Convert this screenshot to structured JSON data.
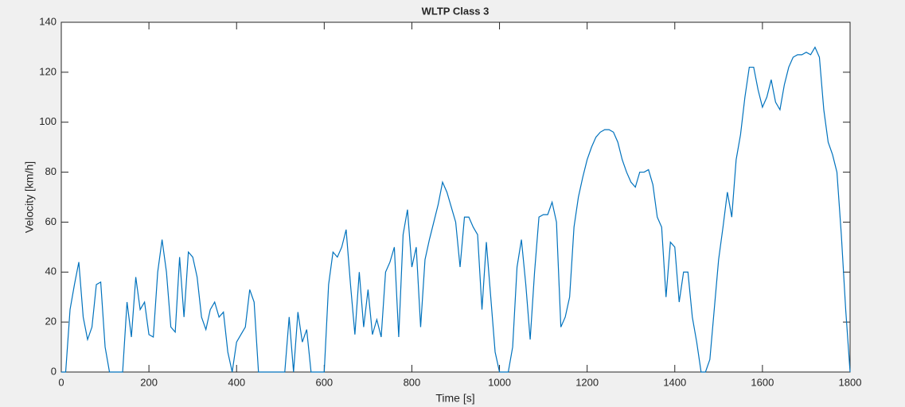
{
  "chart_data": {
    "type": "line",
    "title": "WLTP Class 3",
    "x_label": "Time [s]",
    "y_label": "Velocity [km/h]",
    "x": [
      0,
      10,
      20,
      30,
      40,
      50,
      60,
      70,
      80,
      90,
      100,
      110,
      120,
      130,
      140,
      150,
      160,
      170,
      180,
      190,
      200,
      210,
      220,
      230,
      240,
      250,
      260,
      270,
      280,
      290,
      300,
      310,
      320,
      330,
      340,
      350,
      360,
      370,
      380,
      390,
      400,
      410,
      420,
      430,
      440,
      450,
      460,
      470,
      480,
      490,
      500,
      510,
      520,
      530,
      540,
      550,
      560,
      570,
      580,
      590,
      600,
      610,
      620,
      630,
      640,
      650,
      660,
      670,
      680,
      690,
      700,
      710,
      720,
      730,
      740,
      750,
      760,
      770,
      780,
      790,
      800,
      810,
      820,
      830,
      840,
      850,
      860,
      870,
      880,
      890,
      900,
      910,
      920,
      930,
      940,
      950,
      960,
      970,
      980,
      990,
      1000,
      1010,
      1020,
      1030,
      1040,
      1050,
      1060,
      1070,
      1080,
      1090,
      1100,
      1110,
      1120,
      1130,
      1140,
      1150,
      1160,
      1170,
      1180,
      1190,
      1200,
      1210,
      1220,
      1230,
      1240,
      1250,
      1260,
      1270,
      1280,
      1290,
      1300,
      1310,
      1320,
      1330,
      1340,
      1350,
      1360,
      1370,
      1380,
      1390,
      1400,
      1410,
      1420,
      1430,
      1440,
      1450,
      1460,
      1470,
      1480,
      1490,
      1500,
      1510,
      1520,
      1530,
      1540,
      1550,
      1560,
      1570,
      1580,
      1590,
      1600,
      1610,
      1620,
      1630,
      1640,
      1650,
      1660,
      1670,
      1680,
      1690,
      1700,
      1710,
      1720,
      1730,
      1740,
      1750,
      1760,
      1770,
      1780,
      1790,
      1800
    ],
    "series": [
      {
        "name": "Velocity",
        "color": "#0072bd",
        "values": [
          0,
          0,
          25,
          35,
          44,
          22,
          13,
          18,
          35,
          36,
          10,
          0,
          0,
          0,
          0,
          28,
          14,
          38,
          25,
          28,
          15,
          14,
          40,
          53,
          40,
          18,
          16,
          46,
          22,
          48,
          46,
          38,
          22,
          17,
          25,
          28,
          22,
          24,
          8,
          0,
          12,
          15,
          18,
          33,
          28,
          0,
          0,
          0,
          0,
          0,
          0,
          0,
          22,
          0,
          24,
          12,
          17,
          0,
          0,
          0,
          0,
          35,
          48,
          46,
          50,
          57,
          35,
          15,
          40,
          18,
          33,
          15,
          21,
          14,
          40,
          44,
          50,
          14,
          55,
          65,
          42,
          50,
          18,
          45,
          53,
          60,
          67,
          76,
          72,
          66,
          60,
          42,
          62,
          62,
          58,
          55,
          25,
          52,
          30,
          8,
          0,
          0,
          0,
          10,
          42,
          53,
          35,
          13,
          40,
          62,
          63,
          63,
          68,
          60,
          18,
          22,
          30,
          58,
          70,
          78,
          85,
          90,
          94,
          96,
          97,
          97,
          96,
          92,
          85,
          80,
          76,
          74,
          80,
          80,
          81,
          75,
          62,
          58,
          30,
          52,
          50,
          28,
          40,
          40,
          22,
          12,
          0,
          0,
          5,
          25,
          45,
          58,
          72,
          62,
          85,
          95,
          110,
          122,
          122,
          113,
          106,
          110,
          117,
          108,
          105,
          115,
          122,
          126,
          127,
          127,
          128,
          127,
          130,
          126,
          105,
          92,
          87,
          80,
          55,
          25,
          0
        ]
      }
    ],
    "xlim": [
      0,
      1800
    ],
    "ylim": [
      0,
      140
    ],
    "xticks": [
      0,
      200,
      400,
      600,
      800,
      1000,
      1200,
      1400,
      1600,
      1800
    ],
    "yticks": [
      0,
      20,
      40,
      60,
      80,
      100,
      120,
      140
    ]
  }
}
